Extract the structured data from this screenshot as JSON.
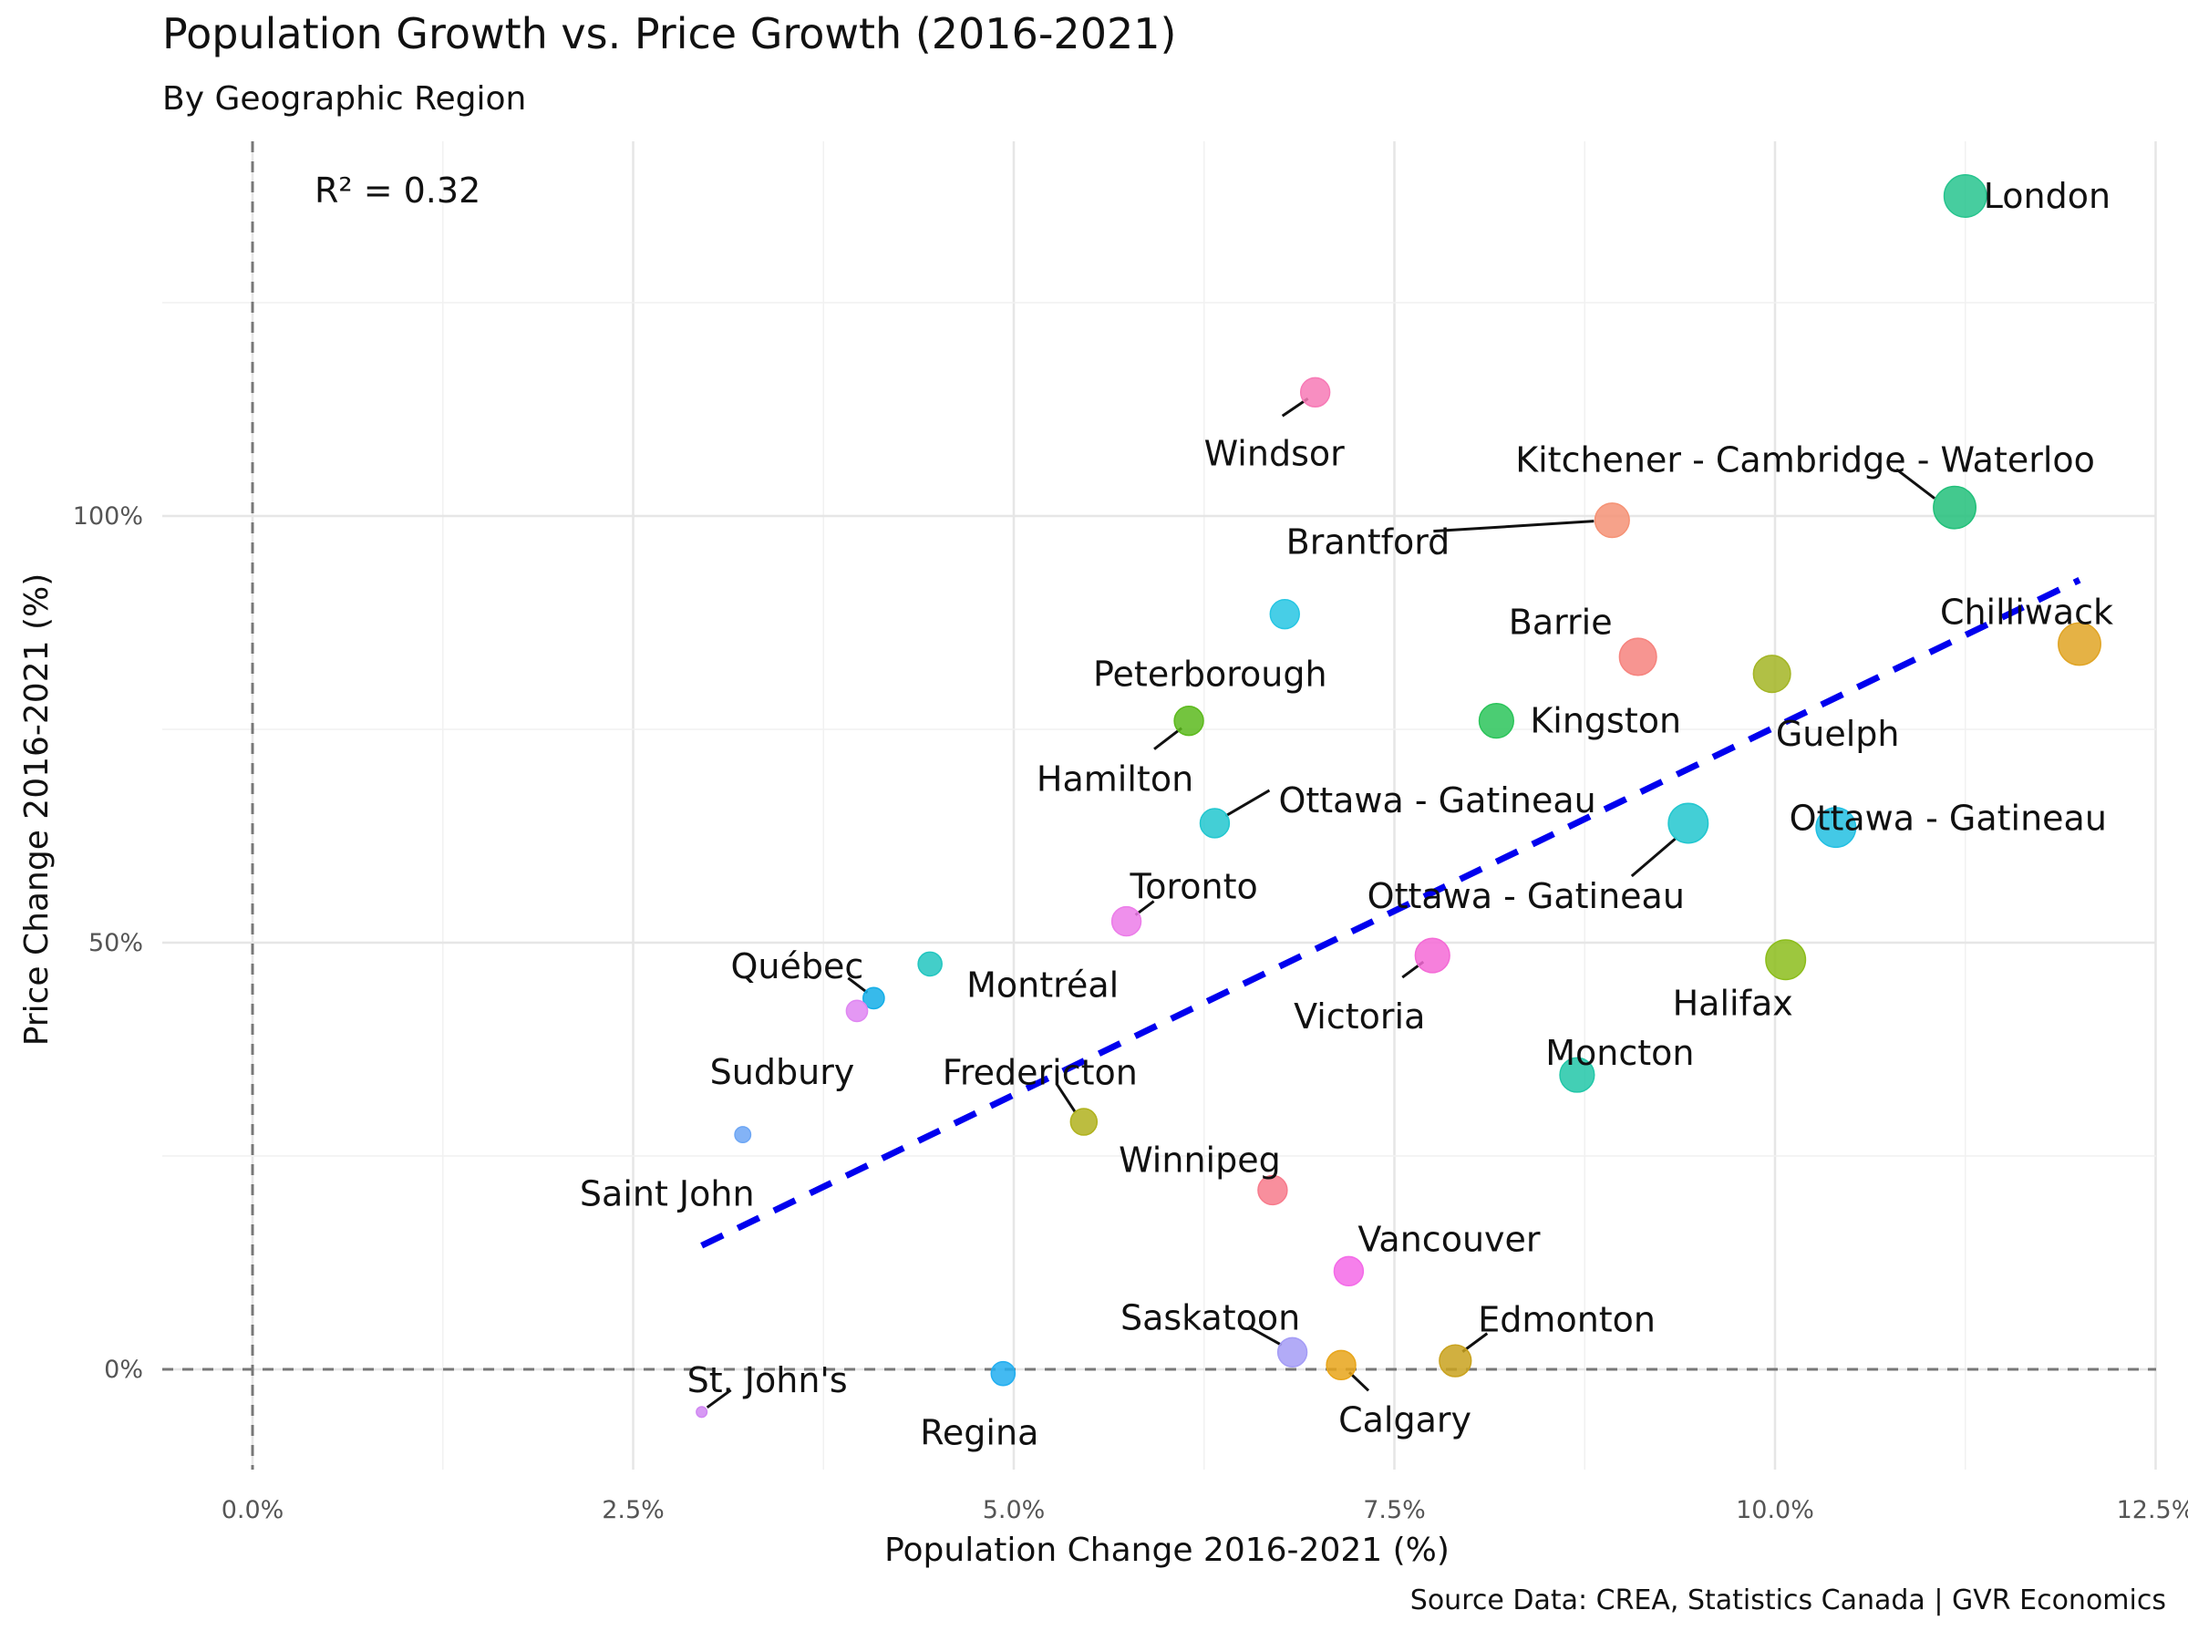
{
  "header": {
    "title": "Population Growth vs. Price Growth (2016-2021)",
    "subtitle": "By Geographic Region"
  },
  "caption": "Source Data: CREA, Statistics Canada | GVR Economics",
  "chart_data": {
    "type": "scatter",
    "title": "Population Growth vs. Price Growth (2016-2021)",
    "subtitle": "By Geographic Region",
    "xlabel": "Population Change 2016-2021 (%)",
    "ylabel": "Price Change 2016-2021 (%)",
    "xlim": [
      -0.6,
      12.5
    ],
    "ylim": [
      -11,
      144
    ],
    "x_ticks": [
      0,
      2.5,
      5,
      7.5,
      10,
      12.5
    ],
    "x_tick_labels": [
      "0.0%",
      "2.5%",
      "5.0%",
      "7.5%",
      "10.0%",
      "12.5%"
    ],
    "y_ticks": [
      0,
      50,
      100
    ],
    "y_tick_labels": [
      "0%",
      "50%",
      "100%"
    ],
    "grid": true,
    "reference_lines": {
      "x": 0,
      "y": 0,
      "style": "dashed",
      "color": "#777777"
    },
    "annotation": "R² = 0.32",
    "trend_line": {
      "x": [
        2.95,
        12.0
      ],
      "y": [
        14.5,
        92.5
      ],
      "color": "#0000ee",
      "style": "dashed"
    },
    "points": [
      {
        "label": "London",
        "x": 11.25,
        "y": 137.5,
        "color": "#27c48e",
        "size": 16
      },
      {
        "label": "Windsor",
        "x": 6.98,
        "y": 114.5,
        "color": "#f77ab6",
        "size": 11
      },
      {
        "label": "Kitchener - Cambridge - Waterloo",
        "x": 11.18,
        "y": 101,
        "color": "#22c07a",
        "size": 16
      },
      {
        "label": "Brantford",
        "x": 8.93,
        "y": 99.5,
        "color": "#f59275",
        "size": 13
      },
      {
        "label": "Peterborough",
        "x": 6.78,
        "y": 88.5,
        "color": "#27c6e3",
        "size": 11
      },
      {
        "label": "Barrie",
        "x": 9.1,
        "y": 83.5,
        "color": "#f6837e",
        "size": 14
      },
      {
        "label": "Chilliwack",
        "x": 12.0,
        "y": 85,
        "color": "#e0a424",
        "size": 16
      },
      {
        "label": "Guelph",
        "x": 9.98,
        "y": 81.5,
        "color": "#a3b524",
        "size": 14
      },
      {
        "label": "Kingston",
        "x": 8.17,
        "y": 76,
        "color": "#2bc45a",
        "size": 13
      },
      {
        "label": "Hamilton",
        "x": 6.15,
        "y": 76,
        "color": "#5cba1d",
        "size": 11
      },
      {
        "label": "Ottawa - Gatineau",
        "x": 6.32,
        "y": 64,
        "color": "#22c7cf",
        "size": 11
      },
      {
        "label": "Ottawa - Gatineau",
        "x": 9.43,
        "y": 64,
        "color": "#22c7cf",
        "size": 15
      },
      {
        "label": "Ottawa - Gatineau",
        "x": 10.4,
        "y": 63.5,
        "color": "#22bfe2",
        "size": 15
      },
      {
        "label": "Toronto",
        "x": 5.74,
        "y": 52.5,
        "color": "#ec7ce9",
        "size": 11
      },
      {
        "label": "Montréal",
        "x": 4.45,
        "y": 47.5,
        "color": "#22c6c0",
        "size": 9
      },
      {
        "label": "Québec",
        "x": 4.08,
        "y": 43.5,
        "color": "#14aee8",
        "size": 8
      },
      {
        "label": "Sudbury",
        "x": 3.97,
        "y": 42,
        "color": "#df86f2",
        "size": 8
      },
      {
        "label": "Victoria",
        "x": 7.75,
        "y": 48.5,
        "color": "#f46ad6",
        "size": 13
      },
      {
        "label": "Halifax",
        "x": 10.07,
        "y": 48,
        "color": "#8cbd1c",
        "size": 15
      },
      {
        "label": "Moncton",
        "x": 8.7,
        "y": 34.5,
        "color": "#22c7a8",
        "size": 13
      },
      {
        "label": "Saint John",
        "x": 3.22,
        "y": 27.5,
        "color": "#6da6f4",
        "size": 6
      },
      {
        "label": "Fredericton",
        "x": 5.46,
        "y": 29,
        "color": "#b0b21e",
        "size": 10
      },
      {
        "label": "Winnipeg",
        "x": 6.7,
        "y": 21,
        "color": "#f77b8c",
        "size": 11
      },
      {
        "label": "Vancouver",
        "x": 7.2,
        "y": 11.5,
        "color": "#f46ae8",
        "size": 11
      },
      {
        "label": "Saskatoon",
        "x": 6.83,
        "y": 2,
        "color": "#a49cf6",
        "size": 11
      },
      {
        "label": "Edmonton",
        "x": 7.9,
        "y": 1,
        "color": "#c9a21e",
        "size": 12
      },
      {
        "label": "Calgary",
        "x": 7.15,
        "y": 0.5,
        "color": "#e8a51a",
        "size": 11
      },
      {
        "label": "Regina",
        "x": 4.93,
        "y": -0.5,
        "color": "#22aef0",
        "size": 9
      },
      {
        "label": "St. John's",
        "x": 2.95,
        "y": -5,
        "color": "#d087f2",
        "size": 4
      }
    ]
  }
}
